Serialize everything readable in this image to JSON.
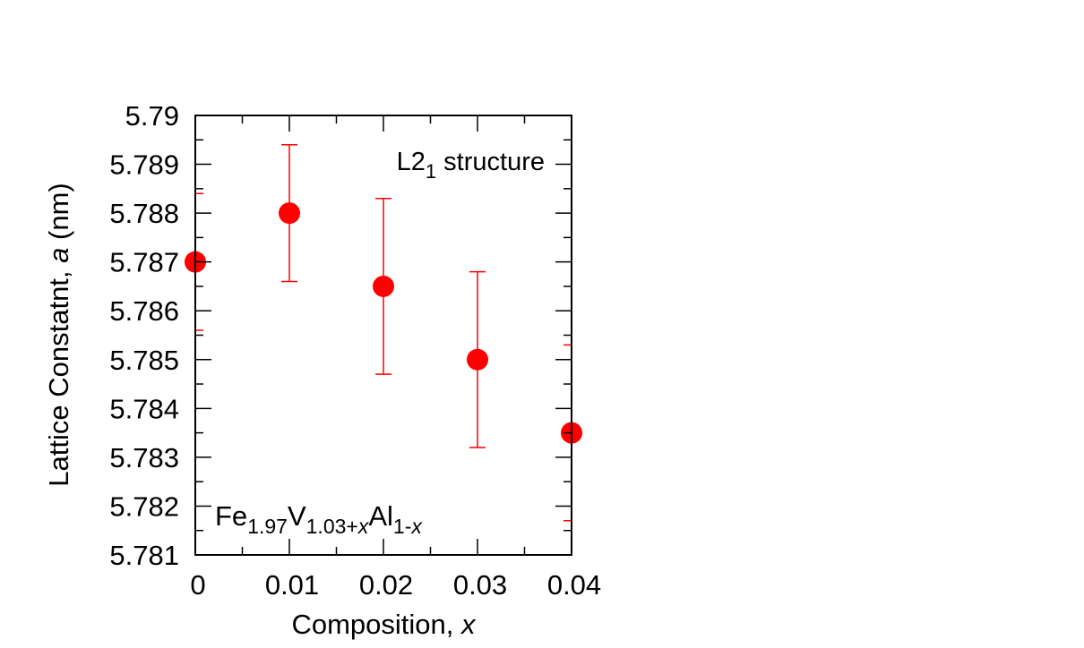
{
  "chart_data": {
    "type": "scatter",
    "xlabel_text": "Composition, ",
    "xlabel_var": "x",
    "ylabel_text": "Lattice Constatnt, ",
    "ylabel_var": "a",
    "ylabel_unit": " (nm)",
    "xlim": [
      0,
      0.04
    ],
    "ylim": [
      5.781,
      5.79
    ],
    "x_ticks": [
      {
        "value": 0,
        "label": "0"
      },
      {
        "value": 0.01,
        "label": "0.01"
      },
      {
        "value": 0.02,
        "label": "0.02"
      },
      {
        "value": 0.03,
        "label": "0.03"
      },
      {
        "value": 0.04,
        "label": "0.04"
      }
    ],
    "y_ticks": [
      {
        "value": 5.781,
        "label": "5.781"
      },
      {
        "value": 5.782,
        "label": "5.782"
      },
      {
        "value": 5.783,
        "label": "5.783"
      },
      {
        "value": 5.784,
        "label": "5.784"
      },
      {
        "value": 5.785,
        "label": "5.785"
      },
      {
        "value": 5.786,
        "label": "5.786"
      },
      {
        "value": 5.787,
        "label": "5.787"
      },
      {
        "value": 5.788,
        "label": "5.788"
      },
      {
        "value": 5.789,
        "label": "5.789"
      },
      {
        "value": 5.79,
        "label": "5.79"
      }
    ],
    "points": [
      {
        "x": 0,
        "y": 5.787,
        "err": 0.0014
      },
      {
        "x": 0.01,
        "y": 5.788,
        "err": 0.0014
      },
      {
        "x": 0.02,
        "y": 5.7865,
        "err": 0.0018
      },
      {
        "x": 0.03,
        "y": 5.785,
        "err": 0.0018
      },
      {
        "x": 0.04,
        "y": 5.7835,
        "err": 0.0018
      }
    ],
    "marker_color": "#ff0000",
    "grid": false,
    "annotation_structure": {
      "main": "L2",
      "sub": "1",
      "rest": " structure"
    },
    "annotation_formula": [
      {
        "text": "Fe",
        "sub": "1.97",
        "sub_italic_tail": ""
      },
      {
        "text": "V",
        "sub": "1.03+",
        "sub_italic_tail": "x"
      },
      {
        "text": "Al",
        "sub": "1-",
        "sub_italic_tail": "x"
      }
    ]
  }
}
